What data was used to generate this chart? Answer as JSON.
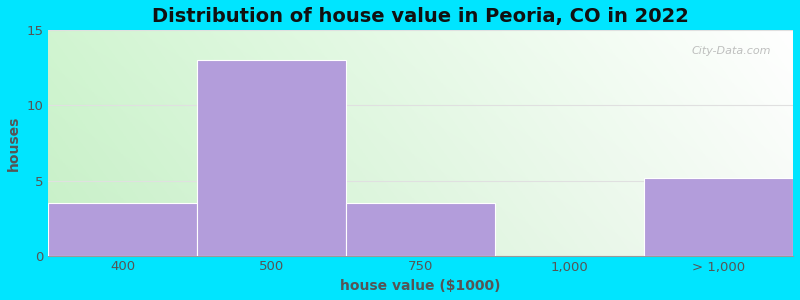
{
  "title": "Distribution of house value in Peoria, CO in 2022",
  "xlabel": "house value ($1000)",
  "ylabel": "houses",
  "categories": [
    "400",
    "500",
    "750",
    "1,000",
    "> 1,000"
  ],
  "values": [
    3.5,
    13,
    3.5,
    0,
    5.2
  ],
  "bar_color": "#b39ddb",
  "ylim": [
    0,
    15
  ],
  "yticks": [
    0,
    5,
    10,
    15
  ],
  "background_outer": "#00e5ff",
  "grid_color": "#e0e0e0",
  "title_fontsize": 14,
  "label_fontsize": 10,
  "tick_fontsize": 9.5,
  "watermark_text": "City-Data.com"
}
